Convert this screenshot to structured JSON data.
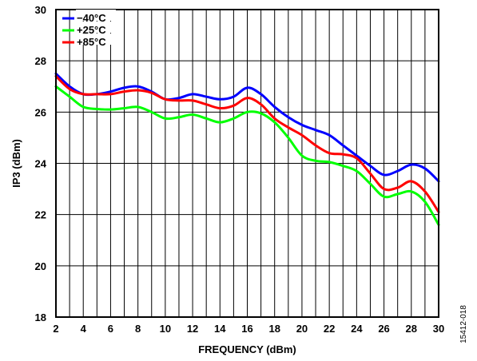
{
  "figure_id": "15412-018",
  "chart_data": {
    "type": "line",
    "xlabel": "FREQUENCY (dBm)",
    "ylabel": "IP3 (dBm)",
    "xlim": [
      2,
      30
    ],
    "ylim": [
      18,
      30
    ],
    "x_ticks": [
      2,
      4,
      6,
      8,
      10,
      12,
      14,
      16,
      18,
      20,
      22,
      24,
      26,
      28,
      30
    ],
    "y_ticks": [
      18,
      20,
      22,
      24,
      26,
      28,
      30
    ],
    "minor_x_step": 1,
    "grid": true,
    "legend_position": "top-left",
    "series": [
      {
        "name": "−40°C",
        "color": "#0000ff",
        "x": [
          2,
          3,
          4,
          5,
          6,
          7,
          8,
          9,
          10,
          11,
          12,
          13,
          14,
          15,
          16,
          17,
          18,
          19,
          20,
          21,
          22,
          23,
          24,
          25,
          26,
          27,
          28,
          29,
          30
        ],
        "y": [
          27.5,
          27.0,
          26.7,
          26.7,
          26.8,
          26.95,
          27.0,
          26.8,
          26.5,
          26.55,
          26.7,
          26.6,
          26.5,
          26.6,
          26.95,
          26.7,
          26.2,
          25.8,
          25.5,
          25.3,
          25.1,
          24.7,
          24.3,
          23.9,
          23.55,
          23.7,
          23.95,
          23.8,
          23.3
        ]
      },
      {
        "name": "+25°C",
        "color": "#00ff00",
        "x": [
          2,
          3,
          4,
          5,
          6,
          7,
          8,
          9,
          10,
          11,
          12,
          13,
          14,
          15,
          16,
          17,
          18,
          19,
          20,
          21,
          22,
          23,
          24,
          25,
          26,
          27,
          28,
          29,
          30
        ],
        "y": [
          27.0,
          26.6,
          26.2,
          26.12,
          26.1,
          26.15,
          26.2,
          26.0,
          25.75,
          25.8,
          25.9,
          25.75,
          25.6,
          25.75,
          26.0,
          25.95,
          25.6,
          25.0,
          24.3,
          24.1,
          24.05,
          23.9,
          23.7,
          23.2,
          22.7,
          22.8,
          22.9,
          22.5,
          21.6
        ]
      },
      {
        "name": "+85°C",
        "color": "#ff0000",
        "x": [
          2,
          3,
          4,
          5,
          6,
          7,
          8,
          9,
          10,
          11,
          12,
          13,
          14,
          15,
          16,
          17,
          18,
          19,
          20,
          21,
          22,
          23,
          24,
          25,
          26,
          27,
          28,
          29,
          30
        ],
        "y": [
          27.4,
          26.9,
          26.7,
          26.7,
          26.7,
          26.8,
          26.85,
          26.75,
          26.5,
          26.45,
          26.45,
          26.3,
          26.15,
          26.25,
          26.55,
          26.3,
          25.75,
          25.4,
          25.1,
          24.7,
          24.4,
          24.35,
          24.2,
          23.6,
          23.0,
          23.05,
          23.3,
          22.9,
          22.1
        ]
      }
    ]
  }
}
